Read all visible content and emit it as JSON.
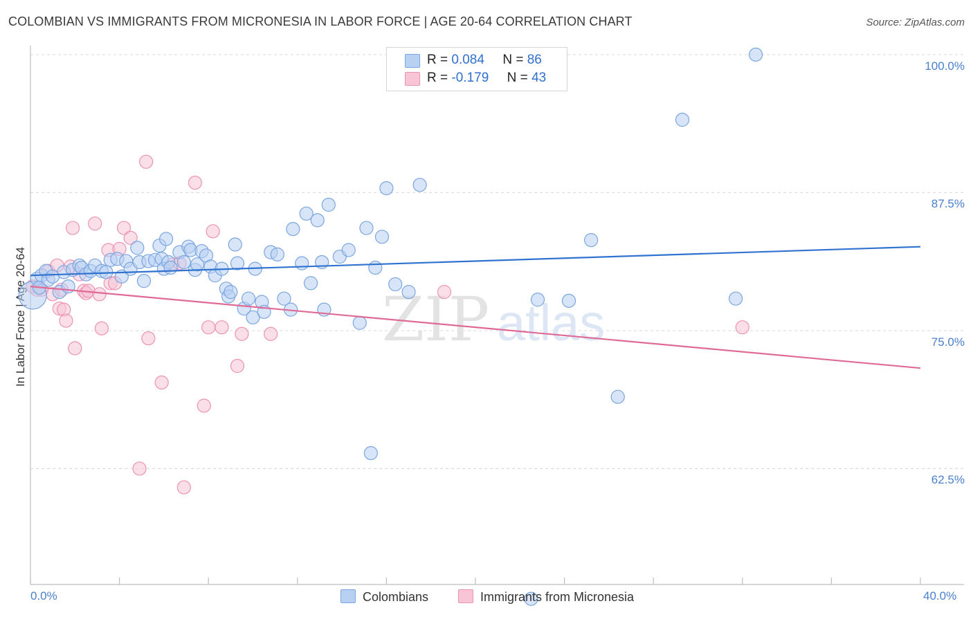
{
  "title": "COLOMBIAN VS IMMIGRANTS FROM MICRONESIA IN LABOR FORCE | AGE 20-64 CORRELATION CHART",
  "source": "Source: ZipAtlas.com",
  "watermark": {
    "zip": "ZIP",
    "atlas": "atlas"
  },
  "legend": {
    "colombians": {
      "r_label": "R =",
      "r_value": "0.084",
      "n_label": "N =",
      "n_value": "86"
    },
    "micronesia": {
      "r_label": "R =",
      "r_value": "-0.179",
      "n_label": "N =",
      "n_value": "43"
    }
  },
  "colors": {
    "blue_fill": "#b8d0f2",
    "blue_stroke": "#7aa6e0",
    "blue_line": "#2f72d0",
    "pink_fill": "#f8c5d6",
    "pink_stroke": "#ec93b2",
    "pink_line": "#e06a96",
    "grid": "#d9d9d9",
    "tick_text": "#4a7fd0"
  },
  "chart_data": {
    "type": "scatter",
    "title": "COLOMBIAN VS IMMIGRANTS FROM MICRONESIA IN LABOR FORCE | AGE 20-64 CORRELATION CHART",
    "xlabel": "",
    "ylabel": "In Labor Force | Age 20-64",
    "xlim": [
      0,
      40
    ],
    "ylim": [
      52,
      100
    ],
    "x_tick_labels": [
      "0.0%",
      "40.0%"
    ],
    "y_ticks": [
      100.0,
      87.5,
      75.0,
      62.5
    ],
    "y_tick_labels": [
      "100.0%",
      "87.5%",
      "75.0%",
      "62.5%"
    ],
    "grid": "horizontal dashed",
    "legend_position": "top-center",
    "series": [
      {
        "name": "Colombians",
        "r": 0.084,
        "n": 86,
        "trend": {
          "x": [
            0,
            40
          ],
          "y": [
            80.0,
            82.6
          ]
        },
        "points": [
          [
            0.1,
            78.2
          ],
          [
            0.3,
            79.7
          ],
          [
            0.4,
            78.9
          ],
          [
            0.5,
            80.0
          ],
          [
            0.7,
            80.4
          ],
          [
            0.8,
            79.6
          ],
          [
            1.0,
            79.9
          ],
          [
            1.3,
            78.5
          ],
          [
            1.5,
            80.3
          ],
          [
            1.7,
            79.0
          ],
          [
            1.9,
            80.5
          ],
          [
            2.2,
            80.9
          ],
          [
            2.3,
            80.7
          ],
          [
            2.5,
            80.1
          ],
          [
            2.7,
            80.4
          ],
          [
            2.9,
            80.9
          ],
          [
            3.2,
            80.4
          ],
          [
            3.4,
            80.3
          ],
          [
            3.6,
            81.4
          ],
          [
            3.9,
            81.5
          ],
          [
            4.1,
            79.9
          ],
          [
            4.3,
            81.3
          ],
          [
            4.5,
            80.6
          ],
          [
            4.8,
            82.5
          ],
          [
            4.9,
            81.2
          ],
          [
            5.1,
            79.5
          ],
          [
            5.3,
            81.3
          ],
          [
            5.6,
            81.4
          ],
          [
            5.8,
            82.7
          ],
          [
            5.9,
            81.5
          ],
          [
            6.0,
            80.6
          ],
          [
            6.1,
            83.3
          ],
          [
            6.2,
            81.2
          ],
          [
            6.3,
            80.7
          ],
          [
            6.7,
            82.1
          ],
          [
            6.9,
            81.2
          ],
          [
            7.1,
            82.6
          ],
          [
            7.2,
            82.3
          ],
          [
            7.4,
            80.5
          ],
          [
            7.5,
            81.0
          ],
          [
            7.7,
            82.2
          ],
          [
            7.9,
            81.8
          ],
          [
            8.1,
            80.8
          ],
          [
            8.3,
            80.0
          ],
          [
            8.6,
            80.6
          ],
          [
            8.8,
            78.8
          ],
          [
            8.9,
            78.1
          ],
          [
            9.0,
            78.5
          ],
          [
            9.2,
            82.8
          ],
          [
            9.3,
            81.1
          ],
          [
            9.6,
            77.0
          ],
          [
            9.8,
            77.9
          ],
          [
            10.0,
            76.2
          ],
          [
            10.1,
            80.6
          ],
          [
            10.4,
            77.6
          ],
          [
            10.5,
            76.7
          ],
          [
            10.8,
            82.1
          ],
          [
            11.1,
            81.9
          ],
          [
            11.4,
            77.9
          ],
          [
            11.7,
            76.9
          ],
          [
            11.8,
            84.2
          ],
          [
            12.2,
            81.1
          ],
          [
            12.4,
            85.6
          ],
          [
            12.6,
            79.3
          ],
          [
            12.9,
            85.0
          ],
          [
            13.1,
            81.2
          ],
          [
            13.2,
            76.9
          ],
          [
            13.4,
            86.4
          ],
          [
            13.9,
            81.7
          ],
          [
            14.3,
            82.3
          ],
          [
            14.8,
            75.7
          ],
          [
            15.1,
            84.3
          ],
          [
            15.3,
            63.9
          ],
          [
            15.5,
            80.7
          ],
          [
            15.8,
            83.5
          ],
          [
            16.0,
            87.9
          ],
          [
            16.4,
            79.2
          ],
          [
            17.0,
            78.5
          ],
          [
            17.5,
            88.2
          ],
          [
            22.5,
            50.7
          ],
          [
            22.8,
            77.8
          ],
          [
            24.2,
            77.7
          ],
          [
            25.2,
            83.2
          ],
          [
            26.4,
            69.0
          ],
          [
            29.3,
            94.1
          ],
          [
            31.7,
            77.9
          ],
          [
            32.6,
            100.0
          ]
        ]
      },
      {
        "name": "Immigrants from Micronesia",
        "r": -0.179,
        "n": 43,
        "trend": {
          "x": [
            0,
            40
          ],
          "y": [
            79.0,
            71.6
          ]
        },
        "points": [
          [
            0.1,
            79.0
          ],
          [
            0.3,
            78.7
          ],
          [
            0.5,
            78.7
          ],
          [
            0.8,
            80.4
          ],
          [
            1.0,
            78.3
          ],
          [
            1.2,
            80.9
          ],
          [
            1.3,
            77.0
          ],
          [
            1.4,
            78.7
          ],
          [
            1.5,
            76.9
          ],
          [
            1.6,
            75.9
          ],
          [
            1.8,
            80.8
          ],
          [
            1.9,
            84.3
          ],
          [
            2.0,
            73.4
          ],
          [
            2.2,
            80.1
          ],
          [
            2.4,
            78.6
          ],
          [
            2.5,
            78.4
          ],
          [
            2.6,
            78.6
          ],
          [
            2.9,
            84.7
          ],
          [
            3.1,
            78.3
          ],
          [
            3.2,
            75.2
          ],
          [
            3.5,
            82.3
          ],
          [
            3.6,
            79.3
          ],
          [
            3.8,
            79.3
          ],
          [
            4.0,
            82.4
          ],
          [
            4.2,
            84.3
          ],
          [
            4.5,
            83.4
          ],
          [
            4.9,
            62.5
          ],
          [
            5.2,
            90.3
          ],
          [
            5.3,
            74.3
          ],
          [
            5.9,
            70.3
          ],
          [
            6.4,
            81.0
          ],
          [
            6.7,
            81.1
          ],
          [
            6.9,
            60.8
          ],
          [
            7.4,
            88.4
          ],
          [
            7.8,
            68.2
          ],
          [
            8.0,
            75.3
          ],
          [
            8.2,
            84.0
          ],
          [
            8.6,
            75.3
          ],
          [
            9.3,
            71.8
          ],
          [
            9.5,
            74.7
          ],
          [
            10.8,
            74.7
          ],
          [
            18.6,
            78.5
          ],
          [
            32.0,
            75.3
          ]
        ]
      }
    ]
  }
}
